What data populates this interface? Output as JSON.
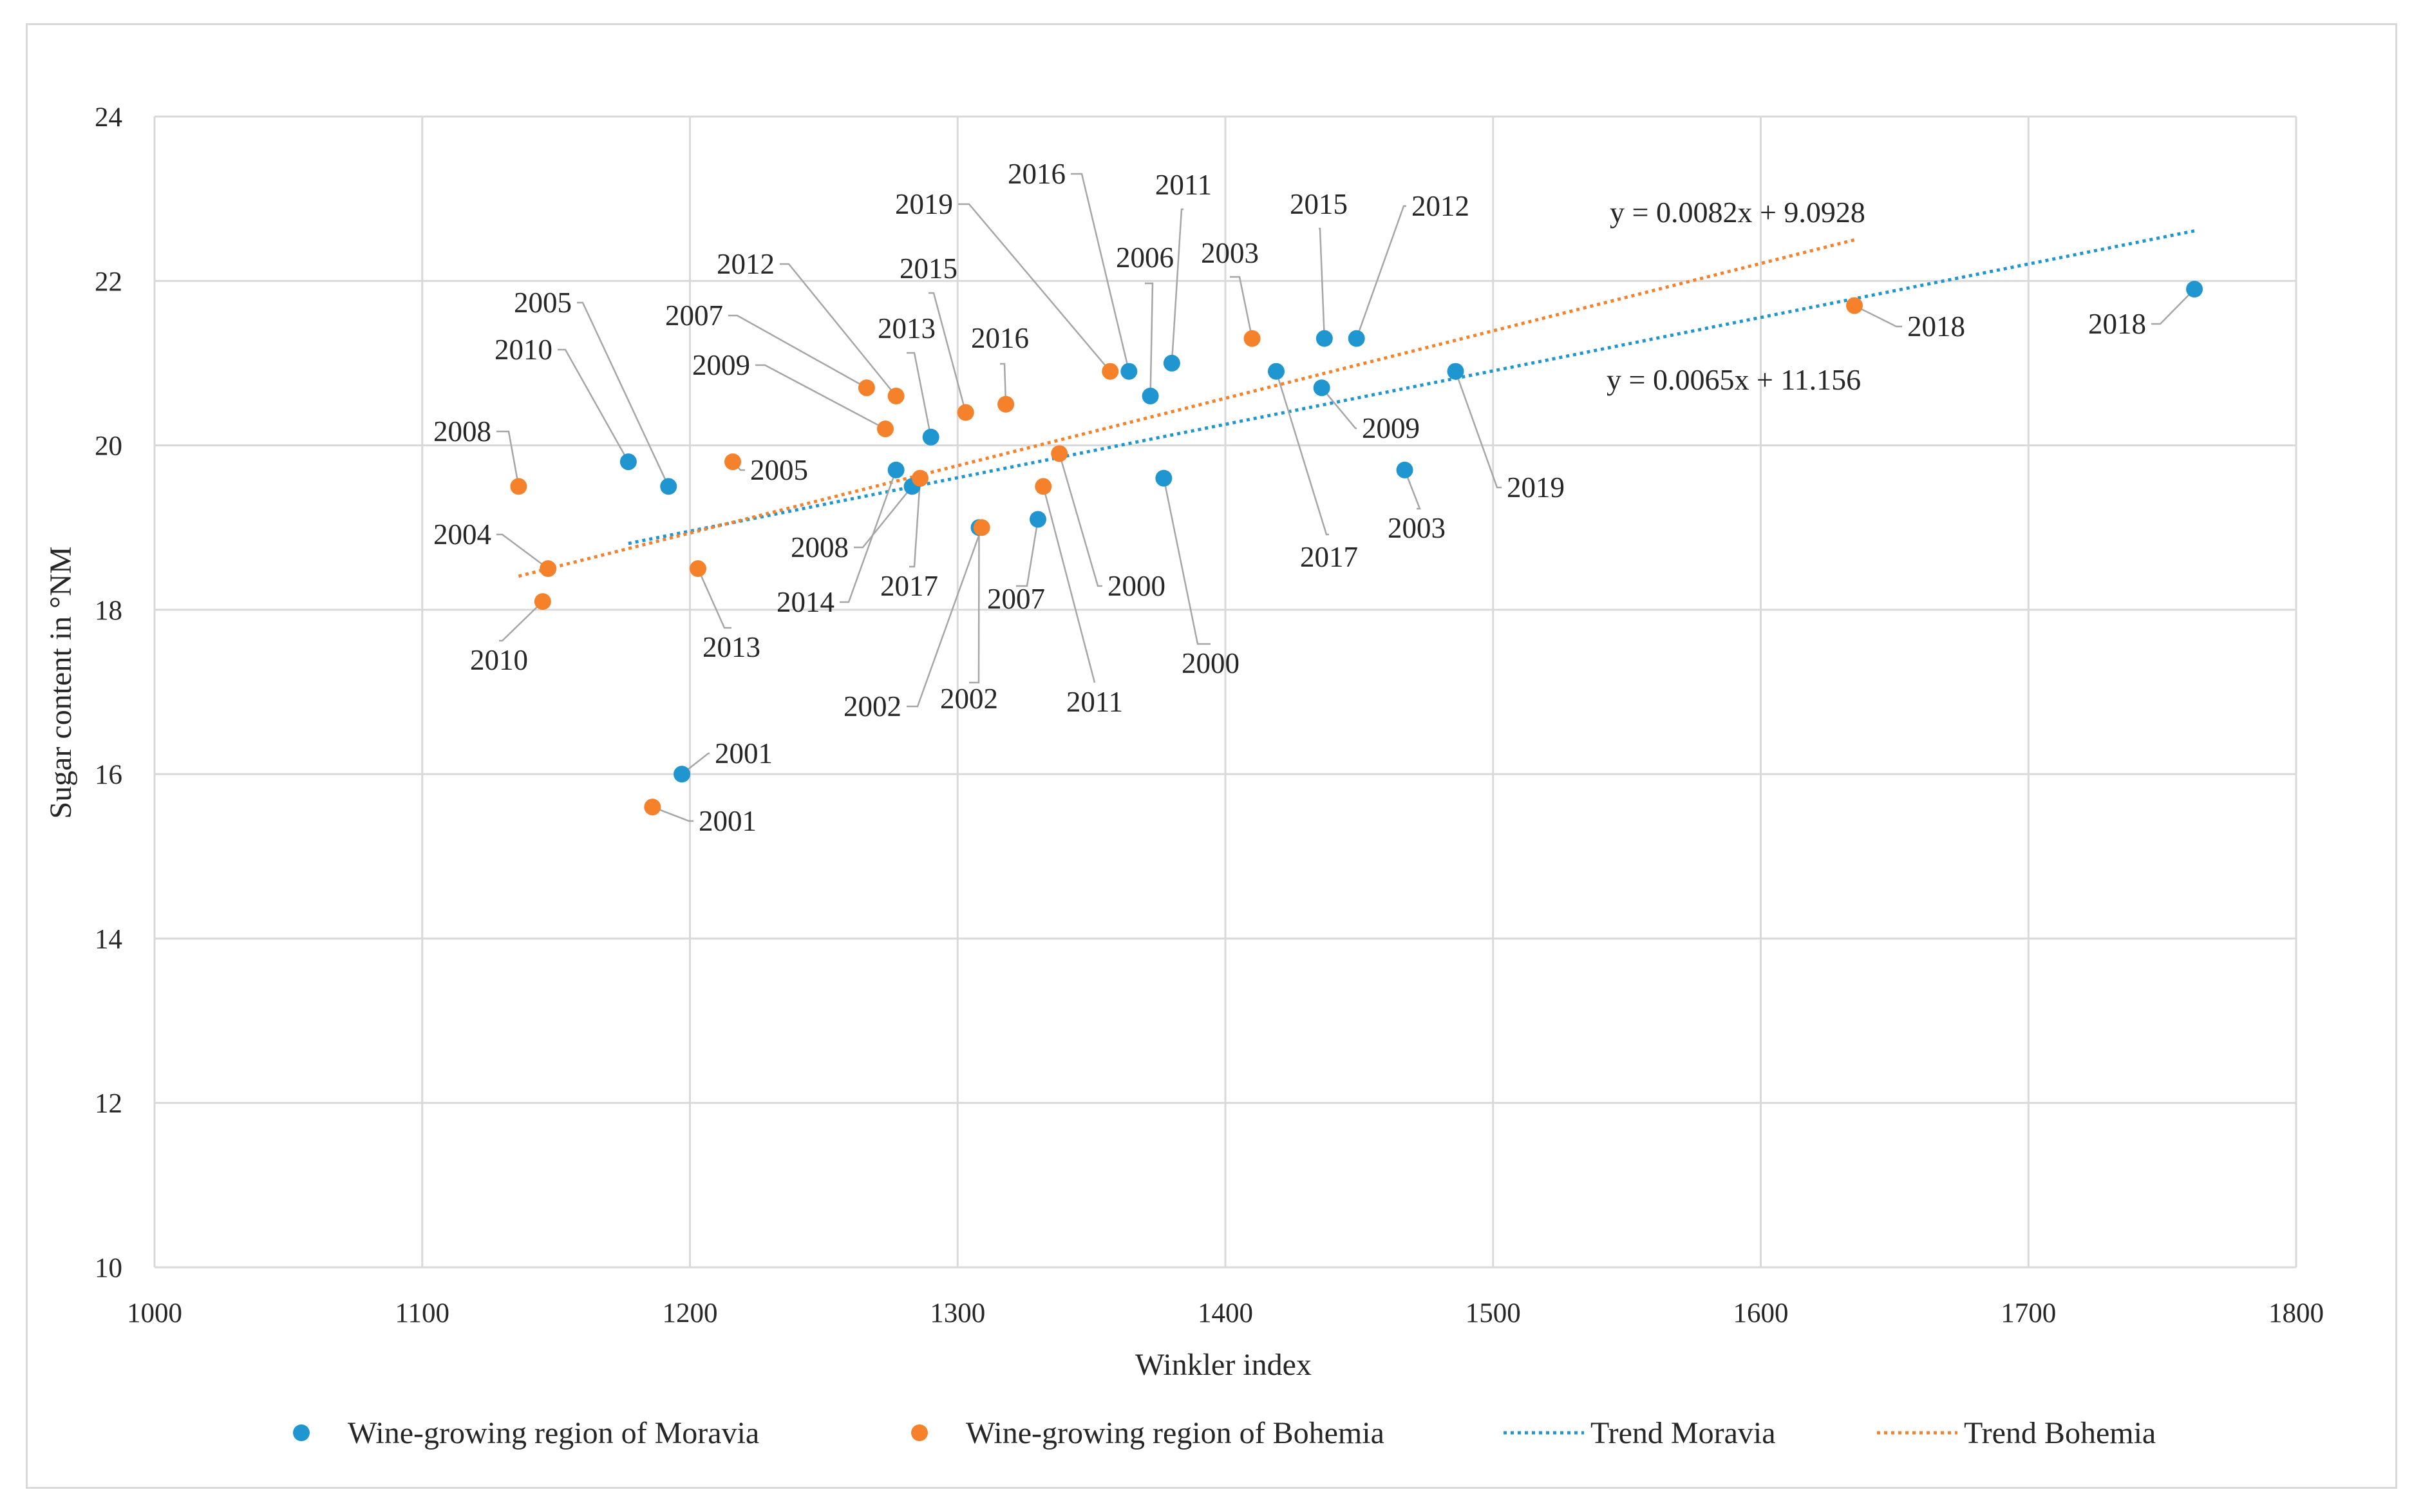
{
  "chart_data": {
    "type": "scatter",
    "xlabel": "Winkler index",
    "ylabel": "Sugar content in °NM",
    "xlim": [
      1000,
      1800
    ],
    "ylim": [
      10,
      24
    ],
    "x_ticks": [
      1000,
      1100,
      1200,
      1300,
      1400,
      1500,
      1600,
      1700,
      1800
    ],
    "y_ticks": [
      10,
      12,
      14,
      16,
      18,
      20,
      22,
      24
    ],
    "grid": true,
    "legend_position": "bottom",
    "colors": {
      "moravia": "#1f96d0",
      "bohemia": "#f5822a"
    },
    "series": [
      {
        "name": "Wine-growing region of Moravia",
        "points": [
          {
            "label": "2000",
            "x": 1377,
            "y": 19.6
          },
          {
            "label": "2001",
            "x": 1197,
            "y": 16.0
          },
          {
            "label": "2002",
            "x": 1308,
            "y": 19.0
          },
          {
            "label": "2003",
            "x": 1467,
            "y": 19.7
          },
          {
            "label": "2005",
            "x": 1192,
            "y": 19.5
          },
          {
            "label": "2006",
            "x": 1372,
            "y": 20.6
          },
          {
            "label": "2007",
            "x": 1330,
            "y": 19.1
          },
          {
            "label": "2008",
            "x": 1283,
            "y": 19.5
          },
          {
            "label": "2009",
            "x": 1436,
            "y": 20.7
          },
          {
            "label": "2010",
            "x": 1177,
            "y": 19.8
          },
          {
            "label": "2011",
            "x": 1380,
            "y": 21.0
          },
          {
            "label": "2012",
            "x": 1449,
            "y": 21.3
          },
          {
            "label": "2013",
            "x": 1290,
            "y": 20.1
          },
          {
            "label": "2014",
            "x": 1277,
            "y": 19.7
          },
          {
            "label": "2015",
            "x": 1437,
            "y": 21.3
          },
          {
            "label": "2016",
            "x": 1364,
            "y": 20.9
          },
          {
            "label": "2017",
            "x": 1419,
            "y": 20.9
          },
          {
            "label": "2018",
            "x": 1762,
            "y": 21.9
          },
          {
            "label": "2019",
            "x": 1486,
            "y": 20.9
          }
        ]
      },
      {
        "name": "Wine-growing region of Bohemia",
        "points": [
          {
            "label": "2000",
            "x": 1338,
            "y": 19.9
          },
          {
            "label": "2001",
            "x": 1186,
            "y": 15.6
          },
          {
            "label": "2002",
            "x": 1309,
            "y": 19.0
          },
          {
            "label": "2003",
            "x": 1410,
            "y": 21.3
          },
          {
            "label": "2004",
            "x": 1147,
            "y": 18.5
          },
          {
            "label": "2005",
            "x": 1216,
            "y": 19.8
          },
          {
            "label": "2007",
            "x": 1266,
            "y": 20.7
          },
          {
            "label": "2008",
            "x": 1136,
            "y": 19.5
          },
          {
            "label": "2009",
            "x": 1273,
            "y": 20.2
          },
          {
            "label": "2010",
            "x": 1145,
            "y": 18.1
          },
          {
            "label": "2011",
            "x": 1332,
            "y": 19.5
          },
          {
            "label": "2012",
            "x": 1277,
            "y": 20.6
          },
          {
            "label": "2013",
            "x": 1203,
            "y": 18.5
          },
          {
            "label": "2015",
            "x": 1303,
            "y": 20.4
          },
          {
            "label": "2016",
            "x": 1318,
            "y": 20.5
          },
          {
            "label": "2017",
            "x": 1286,
            "y": 19.6
          },
          {
            "label": "2018",
            "x": 1635,
            "y": 21.7
          },
          {
            "label": "2019",
            "x": 1357,
            "y": 20.9
          }
        ]
      }
    ],
    "trendlines": [
      {
        "name": "Trend Moravia",
        "color": "#1f96d0",
        "slope": 0.0065,
        "intercept": 11.156,
        "x_range": [
          1177,
          1762
        ],
        "equation": "y = 0.0065x + 11.156"
      },
      {
        "name": "Trend Bohemia",
        "color": "#f5822a",
        "slope": 0.0082,
        "intercept": 9.0928,
        "x_range": [
          1136,
          1635
        ],
        "equation": "y = 0.0082x + 9.0928"
      }
    ]
  }
}
